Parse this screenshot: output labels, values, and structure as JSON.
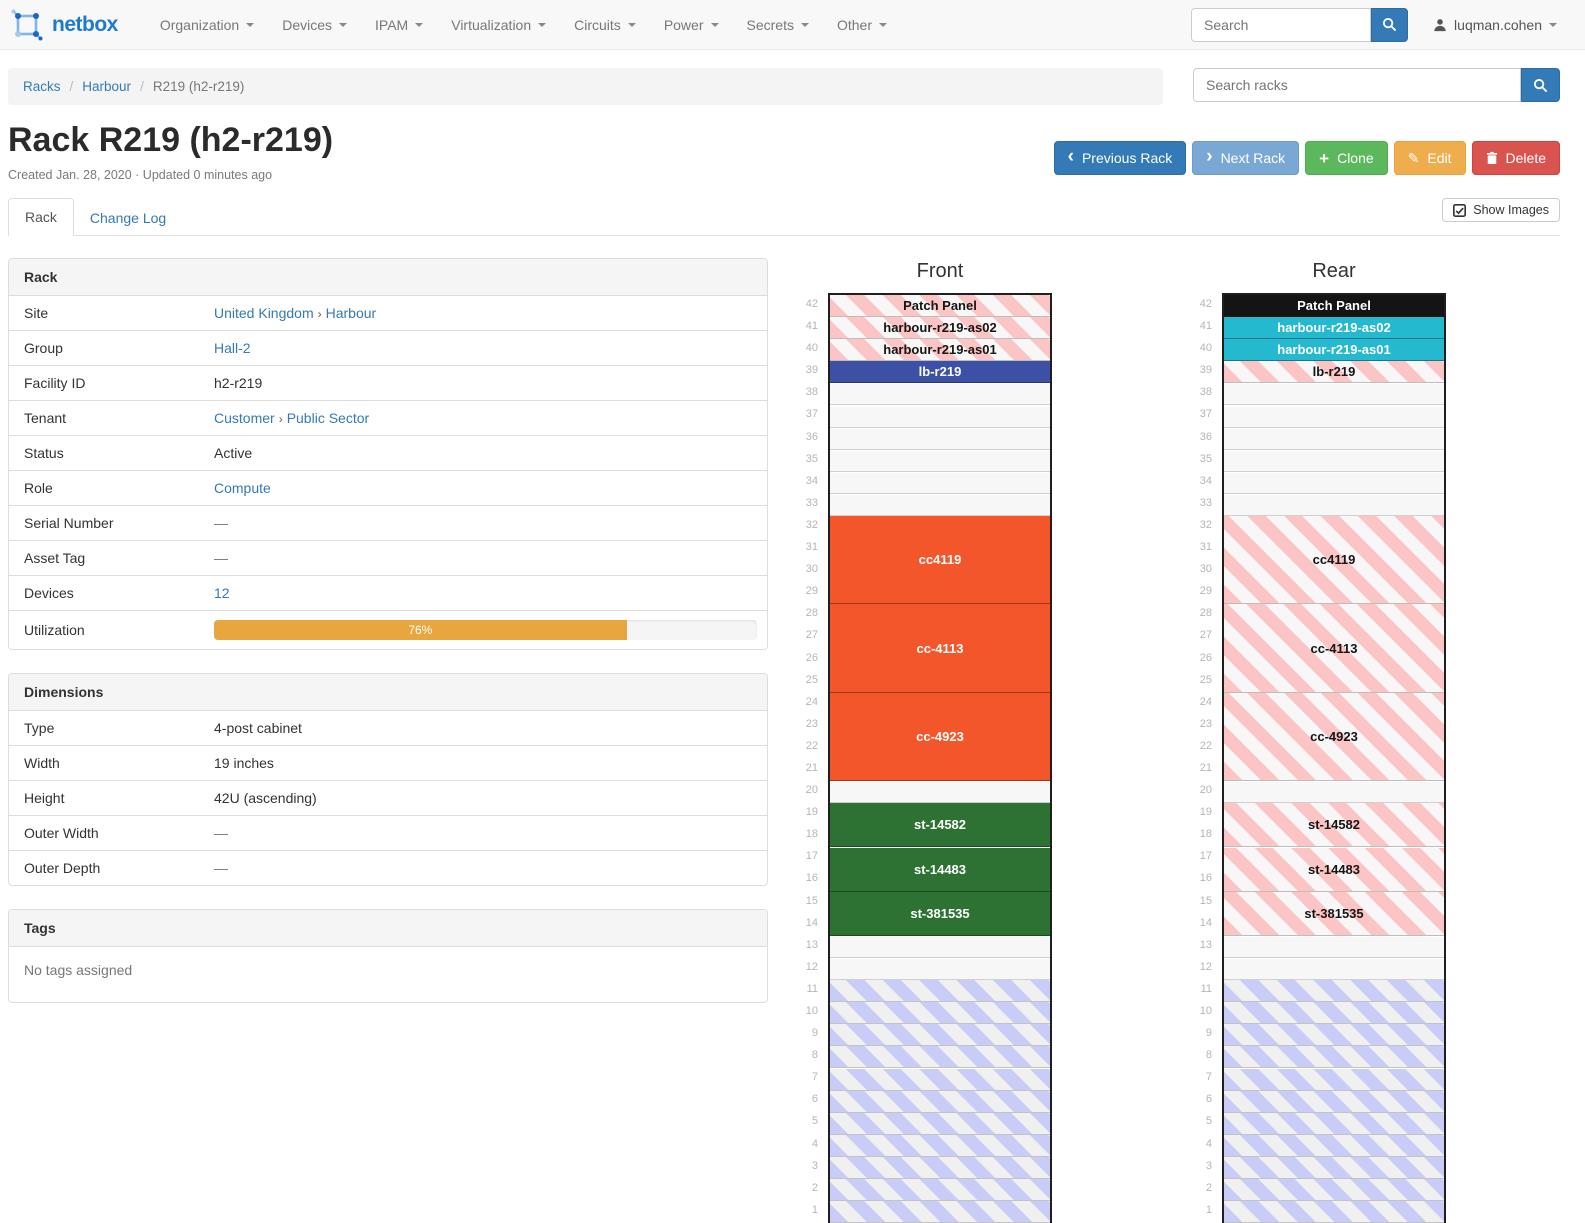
{
  "navbar": {
    "brand": "netbox",
    "menu": [
      "Organization",
      "Devices",
      "IPAM",
      "Virtualization",
      "Circuits",
      "Power",
      "Secrets",
      "Other"
    ],
    "search_placeholder": "Search",
    "user": "luqman.cohen"
  },
  "breadcrumb": {
    "links": [
      "Racks",
      "Harbour"
    ],
    "current": "R219 (h2-r219)",
    "search_placeholder": "Search racks"
  },
  "actions": {
    "previous": "Previous Rack",
    "next": "Next Rack",
    "clone": "Clone",
    "edit": "Edit",
    "delete": "Delete"
  },
  "header": {
    "title": "Rack R219 (h2-r219)",
    "meta": "Created Jan. 28, 2020 · Updated 0 minutes ago"
  },
  "tabs": {
    "rack": "Rack",
    "changelog": "Change Log",
    "show_images": "Show Images"
  },
  "rack_panel": {
    "title": "Rack",
    "rows": [
      {
        "label": "Site",
        "type": "links",
        "parts": [
          "United Kingdom",
          "Harbour"
        ]
      },
      {
        "label": "Group",
        "type": "link",
        "value": "Hall-2"
      },
      {
        "label": "Facility ID",
        "type": "text",
        "value": "h2-r219"
      },
      {
        "label": "Tenant",
        "type": "links",
        "parts": [
          "Customer",
          "Public Sector"
        ]
      },
      {
        "label": "Status",
        "type": "text",
        "value": "Active"
      },
      {
        "label": "Role",
        "type": "link",
        "value": "Compute"
      },
      {
        "label": "Serial Number",
        "type": "muted",
        "value": "—"
      },
      {
        "label": "Asset Tag",
        "type": "muted",
        "value": "—"
      },
      {
        "label": "Devices",
        "type": "link",
        "value": "12"
      },
      {
        "label": "Utilization",
        "type": "progress",
        "value": "76%",
        "percent": 76
      }
    ]
  },
  "dimensions_panel": {
    "title": "Dimensions",
    "rows": [
      {
        "label": "Type",
        "type": "text",
        "value": "4-post cabinet"
      },
      {
        "label": "Width",
        "type": "text",
        "value": "19 inches"
      },
      {
        "label": "Height",
        "type": "text",
        "value": "42U (ascending)"
      },
      {
        "label": "Outer Width",
        "type": "muted",
        "value": "—"
      },
      {
        "label": "Outer Depth",
        "type": "muted",
        "value": "—"
      }
    ]
  },
  "tags_panel": {
    "title": "Tags",
    "empty": "No tags assigned"
  },
  "elevation": {
    "front_title": "Front",
    "rear_title": "Rear",
    "top_unit": 42,
    "bottom_unit": 1,
    "front": [
      {
        "label": "Patch Panel",
        "u": 1,
        "style": "ghost"
      },
      {
        "label": "harbour-r219-as02",
        "u": 1,
        "style": "ghost"
      },
      {
        "label": "harbour-r219-as01",
        "u": 1,
        "style": "ghost"
      },
      {
        "label": "lb-r219",
        "u": 1,
        "style": "solid",
        "color": "#3c50a5"
      },
      {
        "u": 6,
        "style": "empty"
      },
      {
        "label": "cc4119",
        "u": 4,
        "style": "solid",
        "color": "#f4562b"
      },
      {
        "label": "cc-4113",
        "u": 4,
        "style": "solid",
        "color": "#f4562b"
      },
      {
        "label": "cc-4923",
        "u": 4,
        "style": "solid",
        "color": "#f4562b"
      },
      {
        "u": 1,
        "style": "empty"
      },
      {
        "label": "st-14582",
        "u": 2,
        "style": "solid",
        "color": "#2d7233"
      },
      {
        "label": "st-14483",
        "u": 2,
        "style": "solid",
        "color": "#2d7233"
      },
      {
        "label": "st-381535",
        "u": 2,
        "style": "solid",
        "color": "#2d7233"
      },
      {
        "u": 2,
        "style": "empty"
      },
      {
        "u": 11,
        "style": "reserved"
      }
    ],
    "rear": [
      {
        "label": "Patch Panel",
        "u": 1,
        "style": "solid",
        "color": "#141414"
      },
      {
        "label": "harbour-r219-as02",
        "u": 1,
        "style": "solid",
        "color": "#25b9cf"
      },
      {
        "label": "harbour-r219-as01",
        "u": 1,
        "style": "solid",
        "color": "#25b9cf"
      },
      {
        "label": "lb-r219",
        "u": 1,
        "style": "ghost"
      },
      {
        "u": 6,
        "style": "empty"
      },
      {
        "label": "cc4119",
        "u": 4,
        "style": "ghost"
      },
      {
        "label": "cc-4113",
        "u": 4,
        "style": "ghost"
      },
      {
        "label": "cc-4923",
        "u": 4,
        "style": "ghost"
      },
      {
        "u": 1,
        "style": "empty"
      },
      {
        "label": "st-14582",
        "u": 2,
        "style": "ghost"
      },
      {
        "label": "st-14483",
        "u": 2,
        "style": "ghost"
      },
      {
        "label": "st-381535",
        "u": 2,
        "style": "ghost"
      },
      {
        "u": 2,
        "style": "empty"
      },
      {
        "u": 11,
        "style": "reserved"
      }
    ]
  },
  "colors": {
    "link": "#337ab7",
    "primary": "#337ab7",
    "primary_light": "#79a8d4",
    "success": "#5cb85c",
    "warning": "#f0ad4e",
    "danger": "#d9534f",
    "progress_fill": "#e9a63f",
    "ghost_stripe": "#fcc5c5",
    "reserved_stripe": "#c9ccf6"
  }
}
